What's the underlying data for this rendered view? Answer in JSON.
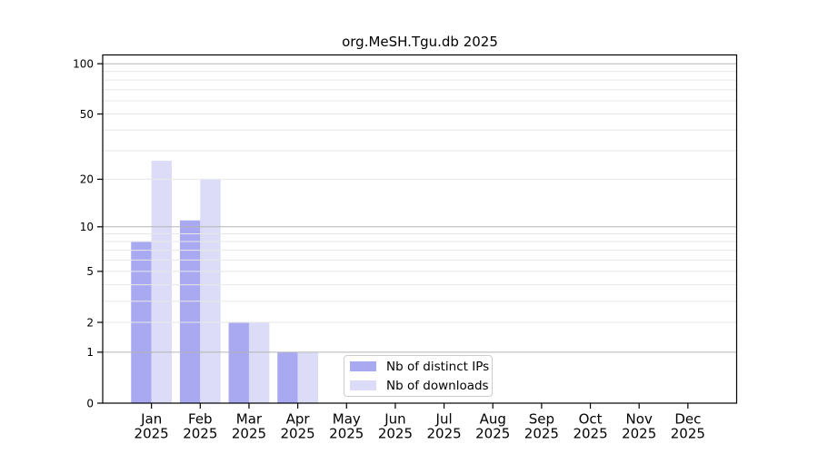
{
  "title": "org.MeSH.Tgu.db 2025",
  "chart_data": {
    "type": "bar",
    "title": "org.MeSH.Tgu.db 2025",
    "categories": [
      "Jan 2025",
      "Feb 2025",
      "Mar 2025",
      "Apr 2025",
      "May 2025",
      "Jun 2025",
      "Jul 2025",
      "Aug 2025",
      "Sep 2025",
      "Oct 2025",
      "Nov 2025",
      "Dec 2025"
    ],
    "series": [
      {
        "name": "Nb of distinct IPs",
        "color": "#a9a9f2",
        "values": [
          8,
          11,
          2,
          1,
          0,
          0,
          0,
          0,
          0,
          0,
          0,
          0
        ]
      },
      {
        "name": "Nb of downloads",
        "color": "#dcdcf8",
        "values": [
          26,
          20,
          2,
          1,
          0,
          0,
          0,
          0,
          0,
          0,
          0,
          0
        ]
      }
    ],
    "xlabel": "",
    "ylabel": "",
    "y_scale": "log1p",
    "ylim": [
      0,
      115
    ],
    "y_ticks": [
      0,
      1,
      2,
      5,
      10,
      20,
      50,
      100
    ],
    "y_major_gridlines": [
      1,
      10,
      100
    ],
    "y_minor_gridlines": [
      2,
      3,
      4,
      5,
      6,
      7,
      8,
      9,
      20,
      30,
      40,
      50,
      60,
      70,
      80,
      90
    ],
    "grid": true,
    "grid_above_bars": true,
    "legend_position": "lower center inside"
  },
  "legend": {
    "items": [
      {
        "label": "Nb of distinct IPs",
        "color": "#a9a9f2"
      },
      {
        "label": "Nb of downloads",
        "color": "#dcdcf8"
      }
    ]
  },
  "colors": {
    "major_grid": "#b4b4b4",
    "minor_grid": "#e7e7e7",
    "spine": "#000000",
    "tick": "#000000",
    "text": "#000000",
    "background": "#ffffff",
    "legend_border": "#cccccc"
  }
}
